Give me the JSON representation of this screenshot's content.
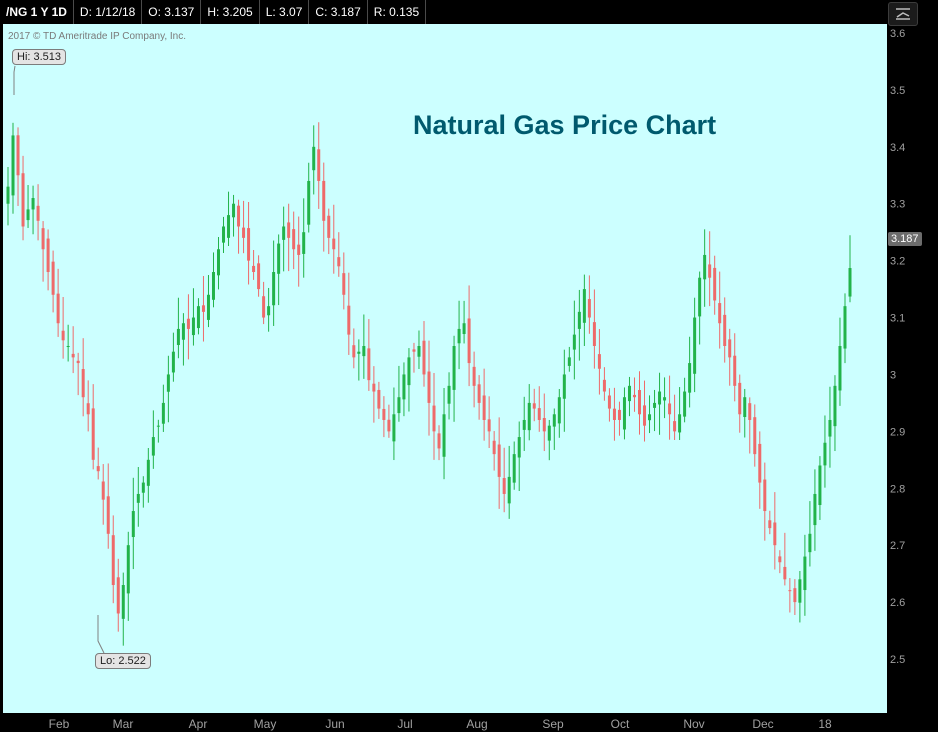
{
  "header": {
    "symbol": "/NG 1 Y 1D",
    "date": "D: 1/12/18",
    "open": "O: 3.137",
    "high": "H: 3.205",
    "low": "L: 3.07",
    "close": "C: 3.187",
    "range": "R: 0.135"
  },
  "copyright": "2017 © TD Ameritrade IP Company, Inc.",
  "colors": {
    "plot_background": "#ccffff",
    "up_candle": "#22b34a",
    "down_candle": "#ee6a6a",
    "title": "#005a6e"
  },
  "chart_data": {
    "type": "candlestick",
    "title": "Natural Gas Price Chart",
    "symbol": "/NG",
    "ylim": [
      2.45,
      3.62
    ],
    "yticks": [
      "3.6",
      "3.5",
      "3.4",
      "3.3",
      "3.2",
      "3.1",
      "3",
      "2.9",
      "2.8",
      "2.7",
      "2.6",
      "2.5"
    ],
    "xticks": [
      "Feb",
      "Mar",
      "Apr",
      "May",
      "Jun",
      "Jul",
      "Aug",
      "Sep",
      "Oct",
      "Nov",
      "Dec",
      "18"
    ],
    "hi_label": "Hi: 3.513",
    "lo_label": "Lo: 2.522",
    "last_price": "3.187",
    "grid": false,
    "series": [
      {
        "close_approx": [
          3.33,
          3.42,
          3.35,
          3.26,
          3.29,
          3.31,
          3.27,
          3.22,
          3.18,
          3.14,
          3.09,
          3.06,
          3.05,
          3.03,
          3.02,
          2.96,
          2.93,
          2.85,
          2.83,
          2.78,
          2.72,
          2.63,
          2.58,
          2.63,
          2.7,
          2.76,
          2.79,
          2.81,
          2.85,
          2.89,
          2.91,
          2.95,
          3.0,
          3.04,
          3.08,
          3.09,
          3.08,
          3.1,
          3.12,
          3.11,
          3.14,
          3.18,
          3.22,
          3.26,
          3.28,
          3.3,
          3.26,
          3.24,
          3.2,
          3.18,
          3.15,
          3.1,
          3.12,
          3.18,
          3.23,
          3.26,
          3.24,
          3.22,
          3.21,
          3.25,
          3.34,
          3.4,
          3.34,
          3.27,
          3.24,
          3.22,
          3.19,
          3.14,
          3.07,
          3.03,
          3.04,
          3.05,
          2.99,
          2.97,
          2.94,
          2.92,
          2.9,
          2.93,
          2.96,
          3.0,
          3.03,
          3.04,
          3.05,
          3.0,
          2.95,
          2.9,
          2.87,
          2.93,
          2.98,
          3.05,
          3.08,
          3.09,
          3.02,
          2.98,
          2.95,
          2.92,
          2.9,
          2.86,
          2.82,
          2.79,
          2.82,
          2.86,
          2.89,
          2.92,
          2.95,
          2.94,
          2.92,
          2.9,
          2.91,
          2.93,
          2.96,
          3.0,
          3.03,
          3.07,
          3.11,
          3.15,
          3.1,
          3.05,
          3.01,
          2.97,
          2.94,
          2.92,
          2.92,
          2.96,
          2.98,
          2.96,
          2.93,
          2.91,
          2.93,
          2.95,
          2.97,
          2.96,
          2.93,
          2.9,
          2.93,
          2.97,
          3.02,
          3.1,
          3.17,
          3.21,
          3.17,
          3.13,
          3.09,
          3.05,
          3.03,
          2.98,
          2.93,
          2.96,
          2.92,
          2.86,
          2.81,
          2.76,
          2.73,
          2.7,
          2.67,
          2.64,
          2.62,
          2.6,
          2.64,
          2.68,
          2.72,
          2.79,
          2.84,
          2.88,
          2.92,
          2.98,
          3.05,
          3.12,
          3.187
        ]
      }
    ]
  }
}
